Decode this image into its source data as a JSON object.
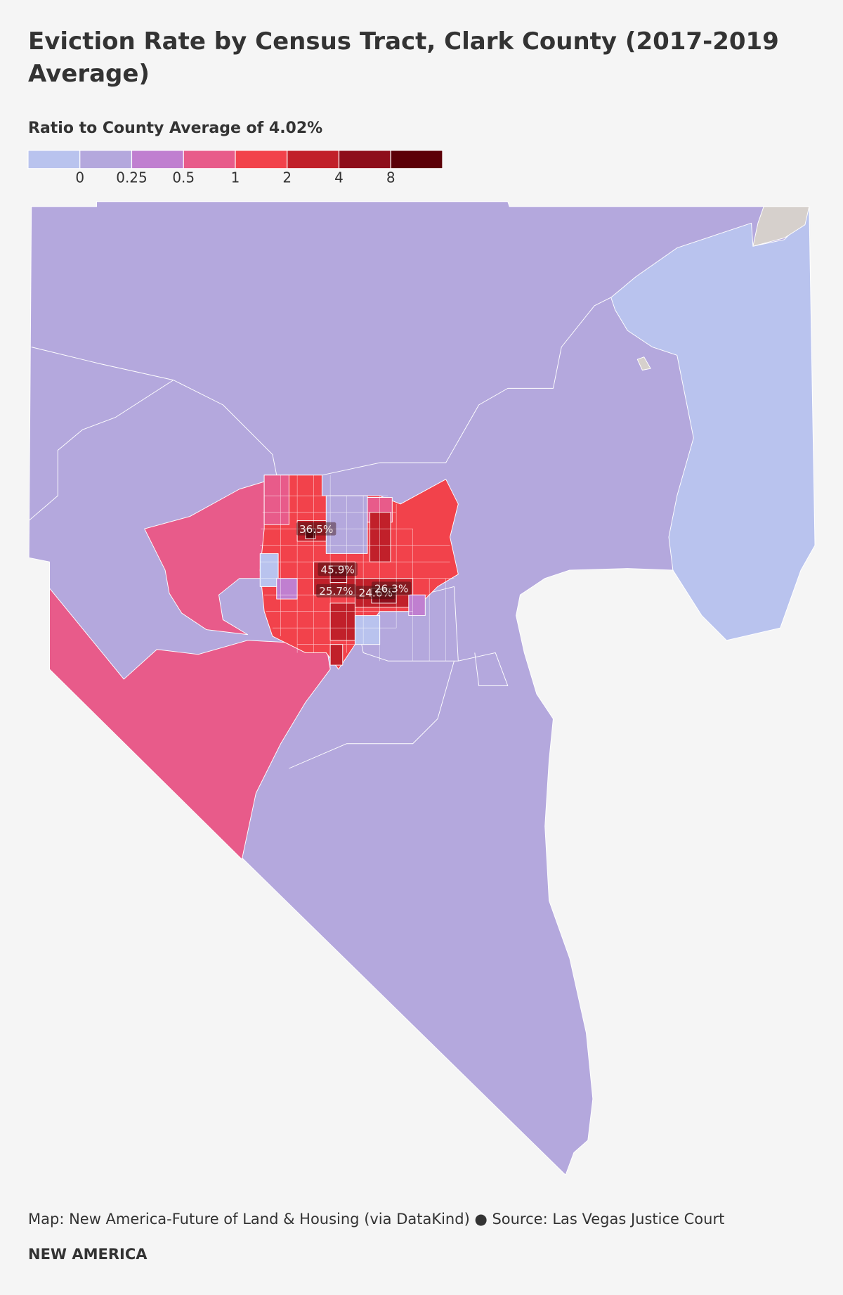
{
  "title": "Eviction Rate by Census Tract, Clark County (2017-2019 Average)",
  "legend": {
    "title": "Ratio to County Average of 4.02%",
    "colors": [
      "#b9c3ee",
      "#b4a8dd",
      "#c07fd0",
      "#e85b8a",
      "#f2424b",
      "#c1202a",
      "#8e0e1b",
      "#5c0008"
    ],
    "ticks": [
      0,
      0.25,
      0.5,
      1,
      2,
      4,
      8
    ]
  },
  "tract_labels": [
    "36.5%",
    "45.9%",
    "25.7%",
    "24.6%",
    "26.3%"
  ],
  "footer": {
    "source": "Map: New America-Future of Land & Housing (via DataKind) ● Source: Las Vegas Justice Court",
    "brand": "NEW AMERICA"
  }
}
